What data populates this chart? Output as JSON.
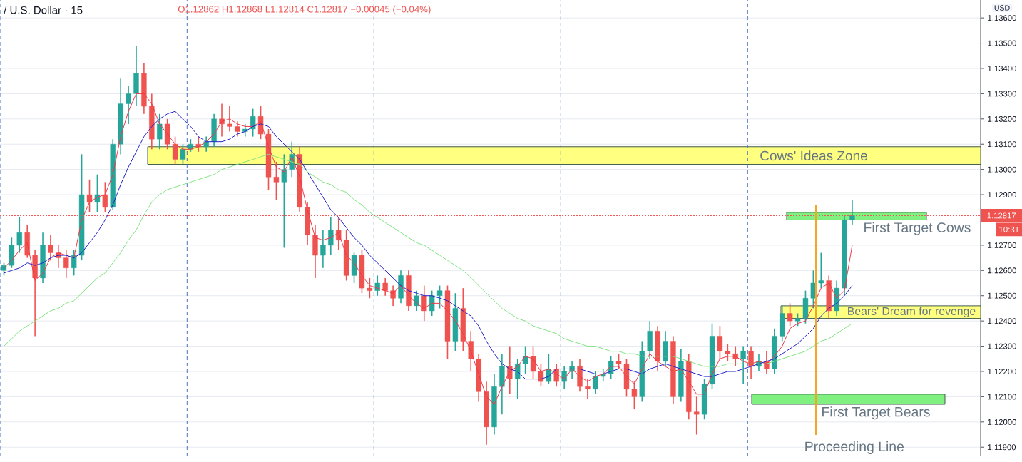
{
  "chart_data": {
    "type": "candlestick",
    "title": "/ U.S. Dollar · 15",
    "subtitle": "O1.12862 H1.12868 L1.12814 C1.12817 −0.00045 (−0.04%)",
    "ylabel": "USD",
    "categories": [
      null,
      null,
      null,
      null,
      null,
      null,
      null,
      null,
      null,
      null,
      null,
      null,
      null,
      null,
      null,
      null,
      null,
      null,
      null,
      null,
      null,
      null,
      null,
      null,
      null,
      null,
      null,
      null,
      null,
      null,
      null,
      null,
      null,
      null,
      null,
      null,
      null,
      null,
      null,
      null,
      null,
      null,
      null,
      null,
      null,
      null,
      null,
      null,
      null,
      null,
      null,
      null,
      null,
      null,
      null,
      null,
      null,
      null,
      null,
      null,
      null,
      null,
      null,
      null,
      null,
      null,
      null,
      null,
      null,
      null,
      null,
      null,
      null,
      null,
      null,
      null,
      null,
      null,
      null,
      null,
      null,
      null,
      null,
      null,
      null,
      null,
      null,
      null,
      null,
      null,
      null,
      null,
      null,
      null,
      null,
      null,
      null,
      null,
      null,
      null,
      null,
      null,
      null,
      null,
      null,
      null,
      null,
      null,
      null,
      null,
      null,
      null,
      null,
      null,
      null,
      null,
      null,
      null,
      null,
      null,
      null,
      null,
      null,
      null,
      null,
      null
    ],
    "ohlc": [
      [
        1.126,
        1.1263,
        1.1258,
        1.1262
      ],
      [
        1.1262,
        1.1273,
        1.1261,
        1.127
      ],
      [
        1.127,
        1.1281,
        1.1267,
        1.1275
      ],
      [
        1.1275,
        1.1278,
        1.1265,
        1.1266
      ],
      [
        1.1266,
        1.1268,
        1.1234,
        1.1257
      ],
      [
        1.1257,
        1.1275,
        1.1255,
        1.127
      ],
      [
        1.127,
        1.1274,
        1.1264,
        1.1267
      ],
      [
        1.1267,
        1.127,
        1.1261,
        1.1265
      ],
      [
        1.1265,
        1.1268,
        1.1257,
        1.1261
      ],
      [
        1.1261,
        1.1268,
        1.1258,
        1.1266
      ],
      [
        1.1266,
        1.1306,
        1.1264,
        1.129
      ],
      [
        1.129,
        1.1296,
        1.1283,
        1.1287
      ],
      [
        1.1287,
        1.1298,
        1.1283,
        1.129
      ],
      [
        1.129,
        1.1295,
        1.1283,
        1.1285
      ],
      [
        1.1285,
        1.1312,
        1.1284,
        1.131
      ],
      [
        1.131,
        1.1336,
        1.1306,
        1.1326
      ],
      [
        1.1326,
        1.1333,
        1.1318,
        1.133
      ],
      [
        1.133,
        1.1349,
        1.1325,
        1.1338
      ],
      [
        1.1338,
        1.1342,
        1.1322,
        1.1325
      ],
      [
        1.1325,
        1.133,
        1.1308,
        1.1312
      ],
      [
        1.1312,
        1.1322,
        1.1308,
        1.1318
      ],
      [
        1.1318,
        1.132,
        1.1308,
        1.131
      ],
      [
        1.131,
        1.1313,
        1.1302,
        1.1304
      ],
      [
        1.1304,
        1.131,
        1.1302,
        1.1308
      ],
      [
        1.1308,
        1.1312,
        1.1307,
        1.131
      ],
      [
        1.131,
        1.1313,
        1.1307,
        1.1309
      ],
      [
        1.1309,
        1.1313,
        1.1307,
        1.1311
      ],
      [
        1.1311,
        1.1322,
        1.1309,
        1.132
      ],
      [
        1.132,
        1.1326,
        1.1313,
        1.1318
      ],
      [
        1.1318,
        1.1325,
        1.1315,
        1.1317
      ],
      [
        1.1317,
        1.1319,
        1.1313,
        1.1315
      ],
      [
        1.1315,
        1.1318,
        1.1313,
        1.1316
      ],
      [
        1.1316,
        1.1324,
        1.1313,
        1.1321
      ],
      [
        1.1321,
        1.1325,
        1.1312,
        1.1314
      ],
      [
        1.1314,
        1.1316,
        1.1292,
        1.1297
      ],
      [
        1.1297,
        1.1303,
        1.1288,
        1.1295
      ],
      [
        1.1295,
        1.1306,
        1.1269,
        1.13
      ],
      [
        1.13,
        1.1311,
        1.1297,
        1.1306
      ],
      [
        1.1306,
        1.1309,
        1.1283,
        1.1285
      ],
      [
        1.1285,
        1.1287,
        1.127,
        1.1274
      ],
      [
        1.1274,
        1.1278,
        1.1257,
        1.1266
      ],
      [
        1.1266,
        1.1276,
        1.1261,
        1.127
      ],
      [
        1.127,
        1.1281,
        1.1266,
        1.1276
      ],
      [
        1.1276,
        1.1281,
        1.1268,
        1.1272
      ],
      [
        1.1272,
        1.1276,
        1.1256,
        1.1258
      ],
      [
        1.1258,
        1.1267,
        1.1255,
        1.1266
      ],
      [
        1.1266,
        1.1268,
        1.1251,
        1.1253
      ],
      [
        1.1253,
        1.1257,
        1.1249,
        1.1252
      ],
      [
        1.1252,
        1.1258,
        1.125,
        1.1255
      ],
      [
        1.1255,
        1.1257,
        1.125,
        1.1252
      ],
      [
        1.1252,
        1.1254,
        1.1246,
        1.1249
      ],
      [
        1.1249,
        1.126,
        1.1247,
        1.1258
      ],
      [
        1.1258,
        1.126,
        1.1244,
        1.1246
      ],
      [
        1.1246,
        1.1252,
        1.1244,
        1.125
      ],
      [
        1.125,
        1.1254,
        1.124,
        1.1244
      ],
      [
        1.1244,
        1.1252,
        1.1242,
        1.125
      ],
      [
        1.125,
        1.1254,
        1.1245,
        1.1252
      ],
      [
        1.1252,
        1.1254,
        1.1225,
        1.1232
      ],
      [
        1.1232,
        1.1251,
        1.1228,
        1.1245
      ],
      [
        1.1245,
        1.1253,
        1.1228,
        1.1232
      ],
      [
        1.1232,
        1.1236,
        1.122,
        1.1225
      ],
      [
        1.1225,
        1.1227,
        1.1208,
        1.1212
      ],
      [
        1.1212,
        1.1216,
        1.1191,
        1.1198
      ],
      [
        1.1198,
        1.1219,
        1.1195,
        1.1214
      ],
      [
        1.1214,
        1.1227,
        1.1203,
        1.1222
      ],
      [
        1.1222,
        1.123,
        1.1211,
        1.1217
      ],
      [
        1.1217,
        1.1225,
        1.1209,
        1.1223
      ],
      [
        1.1223,
        1.123,
        1.1219,
        1.1226
      ],
      [
        1.1226,
        1.123,
        1.1217,
        1.122
      ],
      [
        1.122,
        1.1223,
        1.1214,
        1.1216
      ],
      [
        1.1216,
        1.1227,
        1.1215,
        1.1221
      ],
      [
        1.1221,
        1.1223,
        1.1214,
        1.1216
      ],
      [
        1.1216,
        1.1222,
        1.1213,
        1.122
      ],
      [
        1.122,
        1.1224,
        1.1217,
        1.1222
      ],
      [
        1.1222,
        1.1225,
        1.1212,
        1.1214
      ],
      [
        1.1214,
        1.1217,
        1.1209,
        1.1213
      ],
      [
        1.1213,
        1.122,
        1.1211,
        1.1218
      ],
      [
        1.1218,
        1.1221,
        1.1216,
        1.1219
      ],
      [
        1.1219,
        1.1226,
        1.1217,
        1.1224
      ],
      [
        1.1224,
        1.1227,
        1.1221,
        1.1223
      ],
      [
        1.1223,
        1.1225,
        1.121,
        1.1213
      ],
      [
        1.1213,
        1.1216,
        1.1205,
        1.121
      ],
      [
        1.121,
        1.1232,
        1.1208,
        1.1228
      ],
      [
        1.1228,
        1.124,
        1.1225,
        1.1236
      ],
      [
        1.1236,
        1.1238,
        1.122,
        1.1224
      ],
      [
        1.1224,
        1.1236,
        1.1222,
        1.1232
      ],
      [
        1.1232,
        1.1234,
        1.1207,
        1.121
      ],
      [
        1.121,
        1.1229,
        1.1208,
        1.1224
      ],
      [
        1.1224,
        1.1227,
        1.1201,
        1.1204
      ],
      [
        1.1204,
        1.121,
        1.1195,
        1.1203
      ],
      [
        1.1203,
        1.1217,
        1.1201,
        1.1215
      ],
      [
        1.1215,
        1.1239,
        1.1213,
        1.1234
      ],
      [
        1.1234,
        1.1238,
        1.1225,
        1.1228
      ],
      [
        1.1228,
        1.1231,
        1.1224,
        1.1227
      ],
      [
        1.1227,
        1.123,
        1.1222,
        1.1225
      ],
      [
        1.1225,
        1.123,
        1.1215,
        1.1228
      ],
      [
        1.1228,
        1.123,
        1.1217,
        1.1222
      ],
      [
        1.1222,
        1.1227,
        1.122,
        1.1224
      ],
      [
        1.1224,
        1.1228,
        1.1219,
        1.1221
      ],
      [
        1.1221,
        1.1237,
        1.1219,
        1.1234
      ],
      [
        1.1234,
        1.1246,
        1.1232,
        1.1243
      ],
      [
        1.1243,
        1.1247,
        1.1238,
        1.124
      ],
      [
        1.124,
        1.1243,
        1.1238,
        1.1241
      ],
      [
        1.1241,
        1.1252,
        1.1239,
        1.1249
      ],
      [
        1.1249,
        1.126,
        1.1245,
        1.1255
      ],
      [
        1.1255,
        1.1267,
        1.1253,
        1.1256
      ],
      [
        1.1256,
        1.1258,
        1.1241,
        1.1244
      ],
      [
        1.1244,
        1.1256,
        1.1242,
        1.1253
      ],
      [
        1.1253,
        1.1282,
        1.125,
        1.128
      ],
      [
        1.128,
        1.1288,
        1.1278,
        1.12817
      ],
      null,
      null,
      null,
      null,
      null,
      null,
      null,
      null,
      null,
      null,
      null,
      null,
      null,
      null,
      null,
      null
    ],
    "series": [
      {
        "type": "line",
        "color": "#f23645",
        "values": [
          1.1261,
          1.1264,
          1.1268,
          1.1271,
          1.1256,
          1.1259,
          1.1265,
          1.1267,
          1.1266,
          1.1265,
          1.128,
          1.1287,
          1.1289,
          1.129,
          1.1298,
          1.1313,
          1.1323,
          1.133,
          1.133,
          1.1326,
          1.1318,
          1.1314,
          1.131,
          1.1308,
          1.1308,
          1.1309,
          1.1311,
          1.1314,
          1.1319,
          1.132,
          1.1318,
          1.1317,
          1.1317,
          1.1319,
          1.1309,
          1.1301,
          1.1299,
          1.1305,
          1.1297,
          1.1284,
          1.1273,
          1.1272,
          1.1273,
          1.1275,
          1.1266,
          1.1263,
          1.1258,
          1.1254,
          1.1253,
          1.1252,
          1.1251,
          1.1254,
          1.125,
          1.1247,
          1.1245,
          1.1247,
          1.1247,
          1.1244,
          1.124,
          1.1235,
          1.1228,
          1.1219,
          1.121,
          1.1207,
          1.1214,
          1.122,
          1.1222,
          1.1226,
          1.1225,
          1.122,
          1.1221,
          1.1219,
          1.1217,
          1.1221,
          1.1218,
          1.1216,
          1.1218,
          1.1219,
          1.1222,
          1.1222,
          1.1218,
          1.1215,
          1.1221,
          1.1227,
          1.1224,
          1.1222,
          1.122,
          1.1221,
          1.1216,
          1.1211,
          1.1211,
          1.1219,
          1.1225,
          1.1226,
          1.1226,
          1.1224,
          1.1223,
          1.1224,
          1.1223,
          1.1226,
          1.123,
          1.1237,
          1.1239,
          1.124,
          1.1246,
          1.1253,
          1.1255,
          1.1249,
          1.1252,
          1.127,
          null,
          null,
          null,
          null,
          null,
          null,
          null,
          null,
          null,
          null,
          null,
          null,
          null,
          null,
          null,
          null
        ]
      },
      {
        "type": "line",
        "color": "#2222cc",
        "values": [
          1.1259,
          1.126,
          1.1261,
          1.1263,
          1.1262,
          1.1263,
          1.1265,
          1.1266,
          1.1266,
          1.1265,
          1.1267,
          1.1271,
          1.1275,
          1.128,
          1.1286,
          1.1294,
          1.1301,
          1.1307,
          1.1313,
          1.1317,
          1.132,
          1.1322,
          1.1323,
          1.132,
          1.1317,
          1.1313,
          1.1311,
          1.1311,
          1.1311,
          1.1312,
          1.1314,
          1.1315,
          1.1317,
          1.1318,
          1.1317,
          1.1313,
          1.131,
          1.1307,
          1.1304,
          1.1299,
          1.1294,
          1.1289,
          1.1284,
          1.1281,
          1.1277,
          1.1273,
          1.127,
          1.1266,
          1.1263,
          1.126,
          1.1257,
          1.1254,
          1.1252,
          1.1251,
          1.125,
          1.125,
          1.1249,
          1.1248,
          1.1246,
          1.1244,
          1.1242,
          1.1238,
          1.1232,
          1.1227,
          1.1223,
          1.1221,
          1.122,
          1.1217,
          1.1217,
          1.1217,
          1.1218,
          1.1221,
          1.1221,
          1.1221,
          1.1221,
          1.122,
          1.1219,
          1.1219,
          1.122,
          1.1221,
          1.1221,
          1.122,
          1.1219,
          1.1221,
          1.1222,
          1.1223,
          1.1222,
          1.1221,
          1.122,
          1.1219,
          1.1218,
          1.1218,
          1.1219,
          1.122,
          1.122,
          1.1221,
          1.1222,
          1.1223,
          1.1224,
          1.1225,
          1.1227,
          1.1229,
          1.1231,
          1.1234,
          1.1237,
          1.1242,
          1.1245,
          1.1247,
          1.125,
          1.1254,
          null,
          null,
          null,
          null,
          null,
          null,
          null,
          null,
          null,
          null,
          null,
          null,
          null,
          null,
          null,
          null
        ]
      },
      {
        "type": "line",
        "color": "#83e383",
        "values": [
          1.123,
          1.1233,
          1.1236,
          1.1238,
          1.124,
          1.1242,
          1.1244,
          1.1245,
          1.1247,
          1.1248,
          1.1251,
          1.1254,
          1.1257,
          1.1259,
          1.1263,
          1.1267,
          1.1272,
          1.1276,
          1.1282,
          1.1287,
          1.129,
          1.1292,
          1.1293,
          1.1294,
          1.1295,
          1.1296,
          1.1297,
          1.1298,
          1.13,
          1.1301,
          1.1302,
          1.1303,
          1.1304,
          1.1305,
          1.1306,
          1.1305,
          1.1304,
          1.1303,
          1.1302,
          1.1299,
          1.1297,
          1.1295,
          1.1294,
          1.1292,
          1.1291,
          1.1288,
          1.1286,
          1.1283,
          1.1281,
          1.1279,
          1.1277,
          1.1275,
          1.1273,
          1.1271,
          1.127,
          1.1268,
          1.1266,
          1.1264,
          1.1262,
          1.126,
          1.1257,
          1.1254,
          1.1251,
          1.1248,
          1.1245,
          1.1243,
          1.1241,
          1.124,
          1.1238,
          1.1237,
          1.1236,
          1.1235,
          1.1233,
          1.1232,
          1.1231,
          1.123,
          1.123,
          1.1229,
          1.1228,
          1.1228,
          1.1227,
          1.1227,
          1.1226,
          1.1226,
          1.1226,
          1.1226,
          1.1226,
          1.1225,
          1.1224,
          1.1223,
          1.1222,
          1.1222,
          1.1222,
          1.1223,
          1.1223,
          1.1223,
          1.1223,
          1.1223,
          1.1223,
          1.1224,
          1.1225,
          1.1226,
          1.1227,
          1.1228,
          1.123,
          1.1232,
          1.1233,
          1.1235,
          1.1237,
          1.1239,
          null,
          null,
          null,
          null,
          null,
          null,
          null,
          null,
          null,
          null,
          null,
          null,
          null,
          null,
          null,
          null
        ]
      }
    ],
    "ylim": [
      1.11864,
      1.13671
    ],
    "yticks": [
      {
        "value": 1.119,
        "label": "1.11900"
      },
      {
        "value": 1.12,
        "label": "1.12000"
      },
      {
        "value": 1.121,
        "label": "1.12100"
      },
      {
        "value": 1.122,
        "label": "1.12200"
      },
      {
        "value": 1.123,
        "label": "1.12300"
      },
      {
        "value": 1.124,
        "label": "1.12400"
      },
      {
        "value": 1.125,
        "label": "1.12500"
      },
      {
        "value": 1.126,
        "label": "1.12600"
      },
      {
        "value": 1.127,
        "label": "1.12700"
      },
      {
        "value": 1.128,
        "label": null
      },
      {
        "value": 1.129,
        "label": "1.12900"
      },
      {
        "value": 1.13,
        "label": "1.13000"
      },
      {
        "value": 1.131,
        "label": "1.13100"
      },
      {
        "value": 1.132,
        "label": "1.13200"
      },
      {
        "value": 1.133,
        "label": "1.13300"
      },
      {
        "value": 1.134,
        "label": "1.13400"
      },
      {
        "value": 1.135,
        "label": "1.13500"
      },
      {
        "value": 1.136,
        "label": "1.13600"
      }
    ],
    "grid": "y",
    "bands": [
      {
        "axis": "y",
        "from": 1.1302,
        "to": 1.1309,
        "label": "Cows' Ideas Zone",
        "color": "#ffff80"
      },
      {
        "axis": "y",
        "from": 1.128,
        "to": 1.1283,
        "label": "First Target Cows",
        "color": "#80f080"
      },
      {
        "axis": "y",
        "from": 1.1241,
        "to": 1.1246,
        "label": "Bears' Dream for revenge",
        "color": "#ffff80"
      },
      {
        "axis": "y",
        "from": 1.1207,
        "to": 1.1211,
        "label": "First Target Bears",
        "color": "#80f080"
      }
    ],
    "ref_lines": [
      {
        "axis": "y",
        "value": 1.12817,
        "label": "1.12817",
        "color": "#ef5350",
        "line_style": "dotted"
      }
    ],
    "annotations": [
      "10:31",
      "Proceeding Line"
    ]
  }
}
